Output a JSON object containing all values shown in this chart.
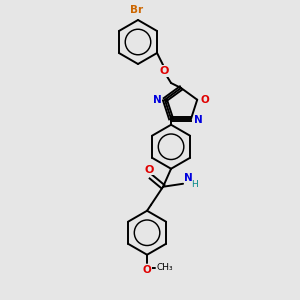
{
  "bg_color": "#e6e6e6",
  "bond_color": "#000000",
  "atom_colors": {
    "Br": "#cc6600",
    "O": "#e00000",
    "N": "#0000dd",
    "H": "#008888",
    "C": "#000000"
  },
  "fig_size": [
    3.0,
    3.0
  ],
  "dpi": 100
}
